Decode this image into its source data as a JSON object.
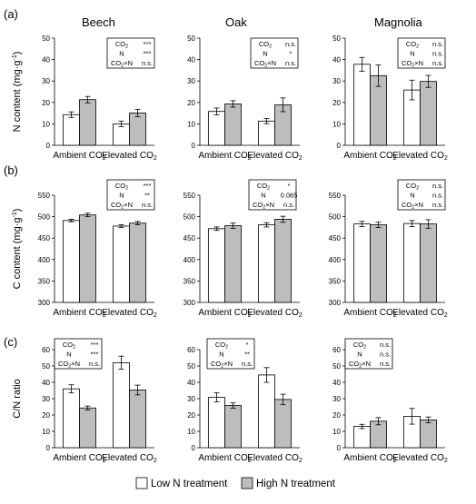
{
  "figure": {
    "species": [
      "Beech",
      "Oak",
      "Magnolia"
    ],
    "row_letters": [
      "(a)",
      "(b)",
      "(c)"
    ],
    "row_ylabels": [
      {
        "main": "N content (mg·g",
        "sup": "-1",
        "close": ")"
      },
      {
        "main": "C content (mg·g",
        "sup": "-1",
        "close": ")"
      },
      {
        "main": "C/N ratio",
        "sup": "",
        "close": ""
      }
    ],
    "categories": [
      {
        "main": "Ambient CO",
        "sub": "2"
      },
      {
        "main": "Elevated CO",
        "sub": "2"
      }
    ],
    "legend": {
      "low": "Low N treatment",
      "high": "High N treatment"
    },
    "colors": {
      "low": "#ffffff",
      "high": "#bdbdbd"
    }
  },
  "chart_data": [
    {
      "type": "bar",
      "row": 0,
      "col": 0,
      "ylim": [
        0,
        50
      ],
      "yticks": [
        "0",
        "10",
        "20",
        "30",
        "40",
        "50"
      ],
      "series": [
        {
          "name": "Low N treatment",
          "values": [
            14.3,
            10.0
          ],
          "errors": [
            1.3,
            1.3
          ]
        },
        {
          "name": "High N treatment",
          "values": [
            21.3,
            15.1
          ],
          "errors": [
            1.5,
            1.7
          ]
        }
      ],
      "stats": [
        [
          "CO2",
          "***"
        ],
        [
          "N",
          "***"
        ],
        [
          "CO2×N",
          "n.s."
        ]
      ]
    },
    {
      "type": "bar",
      "row": 0,
      "col": 1,
      "ylim": [
        0,
        50
      ],
      "yticks": [
        "0",
        "10",
        "20",
        "30",
        "40",
        "50"
      ],
      "series": [
        {
          "name": "Low N treatment",
          "values": [
            15.8,
            11.3
          ],
          "errors": [
            1.6,
            1.2
          ]
        },
        {
          "name": "High N treatment",
          "values": [
            19.3,
            18.9
          ],
          "errors": [
            1.5,
            3.2
          ]
        }
      ],
      "stats": [
        [
          "CO2",
          "n.s."
        ],
        [
          "N",
          "*"
        ],
        [
          "CO2×N",
          "n.s."
        ]
      ]
    },
    {
      "type": "bar",
      "row": 0,
      "col": 2,
      "ylim": [
        0,
        50
      ],
      "yticks": [
        "0",
        "10",
        "20",
        "30",
        "40",
        "50"
      ],
      "series": [
        {
          "name": "Low N treatment",
          "values": [
            37.8,
            25.8
          ],
          "errors": [
            3.2,
            4.6
          ]
        },
        {
          "name": "High N treatment",
          "values": [
            32.5,
            29.8
          ],
          "errors": [
            5.0,
            2.8
          ]
        }
      ],
      "stats": [
        [
          "CO2",
          "n.s."
        ],
        [
          "N",
          "n.s."
        ],
        [
          "CO2×N",
          "n.s."
        ]
      ]
    },
    {
      "type": "bar",
      "row": 1,
      "col": 0,
      "ylim": [
        300,
        550
      ],
      "yticks": [
        "300",
        "350",
        "400",
        "450",
        "500",
        "550"
      ],
      "series": [
        {
          "name": "Low N treatment",
          "values": [
            491,
            478
          ],
          "errors": [
            3,
            3
          ]
        },
        {
          "name": "High N treatment",
          "values": [
            504,
            485
          ],
          "errors": [
            4,
            4
          ]
        }
      ],
      "stats": [
        [
          "CO2",
          "***"
        ],
        [
          "N",
          "**"
        ],
        [
          "CO2×N",
          "n.s."
        ]
      ]
    },
    {
      "type": "bar",
      "row": 1,
      "col": 1,
      "ylim": [
        300,
        550
      ],
      "yticks": [
        "300",
        "350",
        "400",
        "450",
        "500",
        "550"
      ],
      "series": [
        {
          "name": "Low N treatment",
          "values": [
            472,
            481
          ],
          "errors": [
            4,
            5
          ]
        },
        {
          "name": "High N treatment",
          "values": [
            479,
            494
          ],
          "errors": [
            6,
            7
          ]
        }
      ],
      "stats": [
        [
          "CO2",
          "*"
        ],
        [
          "N",
          "0.065"
        ],
        [
          "CO2×N",
          "n.s."
        ]
      ]
    },
    {
      "type": "bar",
      "row": 1,
      "col": 2,
      "ylim": [
        300,
        550
      ],
      "yticks": [
        "300",
        "350",
        "400",
        "450",
        "500",
        "550"
      ],
      "series": [
        {
          "name": "Low N treatment",
          "values": [
            483,
            484
          ],
          "errors": [
            6,
            7
          ]
        },
        {
          "name": "High N treatment",
          "values": [
            481,
            483
          ],
          "errors": [
            6,
            10
          ]
        }
      ],
      "stats": [
        [
          "CO2",
          "n.s."
        ],
        [
          "N",
          "n.s."
        ],
        [
          "CO2×N",
          "n.s."
        ]
      ]
    },
    {
      "type": "bar",
      "row": 2,
      "col": 0,
      "ylim": [
        0,
        60
      ],
      "yticks": [
        "0",
        "10",
        "20",
        "30",
        "40",
        "50",
        "60"
      ],
      "series": [
        {
          "name": "Low N treatment",
          "values": [
            36.0,
            52.0
          ],
          "errors": [
            2.5,
            4.0
          ]
        },
        {
          "name": "High N treatment",
          "values": [
            24.3,
            35.3
          ],
          "errors": [
            1.2,
            3.0
          ]
        }
      ],
      "stats": [
        [
          "CO2",
          "***"
        ],
        [
          "N",
          "***"
        ],
        [
          "CO2×N",
          "n.s."
        ]
      ]
    },
    {
      "type": "bar",
      "row": 2,
      "col": 1,
      "ylim": [
        0,
        60
      ],
      "yticks": [
        "0",
        "10",
        "20",
        "30",
        "40",
        "50",
        "60"
      ],
      "series": [
        {
          "name": "Low N treatment",
          "values": [
            30.8,
            44.5
          ],
          "errors": [
            2.8,
            4.5
          ]
        },
        {
          "name": "High N treatment",
          "values": [
            25.8,
            29.5
          ],
          "errors": [
            1.6,
            3.2
          ]
        }
      ],
      "stats": [
        [
          "CO2",
          "*"
        ],
        [
          "N",
          "**"
        ],
        [
          "CO2×N",
          "n.s."
        ]
      ]
    },
    {
      "type": "bar",
      "row": 2,
      "col": 2,
      "ylim": [
        0,
        60
      ],
      "yticks": [
        "0",
        "10",
        "20",
        "30",
        "40",
        "50",
        "60"
      ],
      "series": [
        {
          "name": "Low N treatment",
          "values": [
            13.0,
            19.2
          ],
          "errors": [
            1.3,
            4.8
          ]
        },
        {
          "name": "High N treatment",
          "values": [
            16.2,
            17.0
          ],
          "errors": [
            2.2,
            1.8
          ]
        }
      ],
      "stats": [
        [
          "CO2",
          "n.s."
        ],
        [
          "N",
          "n.s."
        ],
        [
          "CO2×N",
          "n.s."
        ]
      ]
    }
  ]
}
